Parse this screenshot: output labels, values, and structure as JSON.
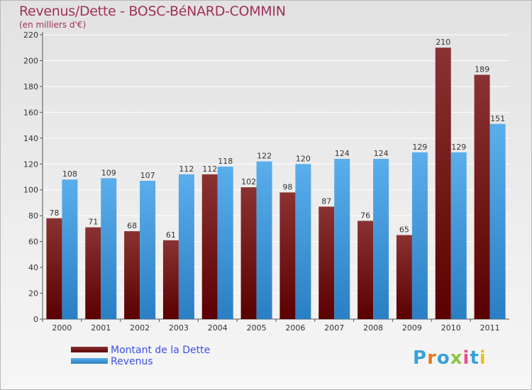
{
  "title": "Revenus/Dette - BOSC-BéNARD-COMMIN",
  "subtitle": "(en milliers d'€)",
  "chart_data": {
    "type": "bar",
    "title": "Revenus/Dette - BOSC-BéNARD-COMMIN",
    "subtitle": "(en milliers d'€)",
    "categories": [
      "2000",
      "2001",
      "2002",
      "2003",
      "2004",
      "2005",
      "2006",
      "2007",
      "2008",
      "2009",
      "2010",
      "2011"
    ],
    "series": [
      {
        "name": "Montant de la Dette",
        "color": "#7a1c1c",
        "values": [
          78,
          71,
          68,
          61,
          112,
          102,
          98,
          87,
          76,
          65,
          210,
          189
        ]
      },
      {
        "name": "Revenus",
        "color": "#4da3e6",
        "values": [
          108,
          109,
          107,
          112,
          118,
          122,
          120,
          124,
          124,
          129,
          129,
          151
        ]
      }
    ],
    "ylim": [
      0,
      220
    ],
    "yticks": [
      0,
      20,
      40,
      60,
      80,
      100,
      120,
      140,
      160,
      180,
      200,
      220
    ],
    "grid": true,
    "legend_position": "bottom-left"
  },
  "legend": [
    {
      "label": "Montant de la Dette",
      "color": "#7a1c1c"
    },
    {
      "label": "Revenus",
      "color": "#4da3e6"
    }
  ],
  "logo": {
    "text": "Proxiti"
  }
}
